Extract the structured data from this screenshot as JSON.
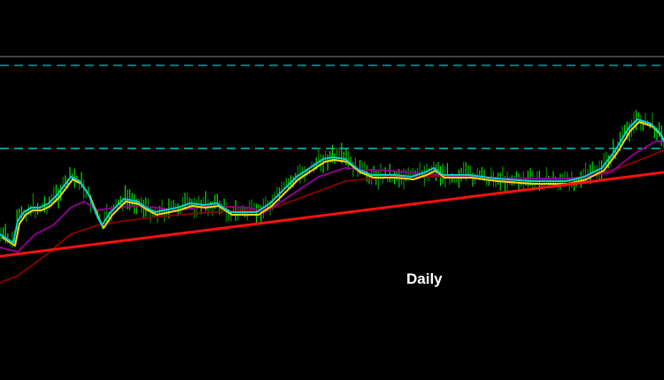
{
  "chart_data": {
    "type": "line",
    "title": "",
    "annotation": "Daily",
    "grid": false,
    "elements": [
      {
        "kind": "price-bars",
        "color": "#00e000"
      },
      {
        "kind": "moving-average",
        "color": "#00d0d0"
      },
      {
        "kind": "moving-average",
        "color": "#ffd700"
      },
      {
        "kind": "moving-average",
        "color": "#8b008b"
      },
      {
        "kind": "moving-average",
        "color": "#8b0000"
      },
      {
        "kind": "trendline",
        "color": "#ff1010"
      },
      {
        "kind": "horizontal-level",
        "style": "dashed",
        "color": "#00a0a0"
      },
      {
        "kind": "horizontal-level",
        "style": "dashed",
        "color": "#00c8c8"
      }
    ]
  }
}
